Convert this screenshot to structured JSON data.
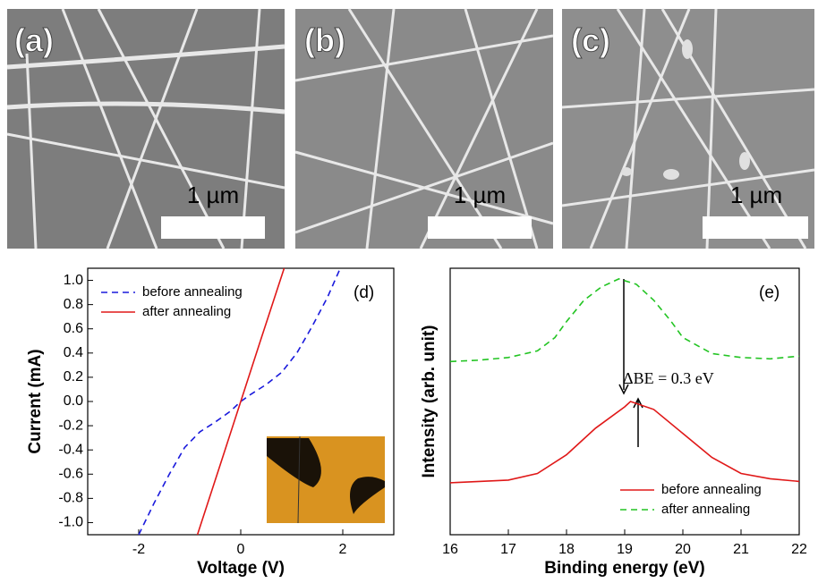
{
  "images": [
    {
      "label": "(a)",
      "scale": "1 µm"
    },
    {
      "label": "(b)",
      "scale": "1 µm"
    },
    {
      "label": "(c)",
      "scale": "1 µm"
    }
  ],
  "chart_data": [
    {
      "type": "line",
      "panel_label": "(d)",
      "xlabel": "Voltage (V)",
      "ylabel": "Current (mA)",
      "xlim": [
        -3,
        3
      ],
      "xticks": [
        -2,
        0,
        2
      ],
      "ylim": [
        -1.1,
        1.1
      ],
      "yticks": [
        {
          "value": -1.0,
          "label": "-1.0"
        },
        -0.8,
        -0.6,
        -0.4,
        -0.2,
        {
          "value": 0,
          "label": "0.0"
        },
        0.2,
        0.4,
        0.6,
        0.8,
        {
          "value": 1.0,
          "label": "1.0"
        }
      ],
      "legend": "upper left",
      "series": [
        {
          "name": "before annealing",
          "color": "#1a1adc",
          "dash": true,
          "x": [
            -2,
            -1.7,
            -1.4,
            -1.1,
            -0.8,
            -0.5,
            -0.2,
            0,
            0.2,
            0.5,
            0.8,
            1.1,
            1.4,
            1.7,
            1.95
          ],
          "values": [
            -1.1,
            -0.84,
            -0.6,
            -0.38,
            -0.25,
            -0.17,
            -0.08,
            0,
            0.06,
            0.14,
            0.24,
            0.4,
            0.62,
            0.86,
            1.1
          ]
        },
        {
          "name": "after annealing",
          "color": "#e01818",
          "dash": false,
          "x": [
            -0.85,
            -0.4,
            0,
            0.4,
            0.85
          ],
          "values": [
            -1.1,
            -0.52,
            0,
            0.52,
            1.1
          ]
        }
      ]
    },
    {
      "type": "line",
      "panel_label": "(e)",
      "xlabel": "Binding energy (eV)",
      "ylabel": "Intensity (arb. unit)",
      "annotation": "ΔBE = 0.3 eV",
      "xlim": [
        16,
        22
      ],
      "xticks": [
        16,
        17,
        18,
        19,
        20,
        21,
        22
      ],
      "ylim": [
        0,
        1
      ],
      "legend": "lower right",
      "series": [
        {
          "name": "before annealing",
          "color": "#e01818",
          "dash": false,
          "x": [
            16,
            16.5,
            17,
            17.5,
            18,
            18.5,
            19,
            19.1,
            19.5,
            20,
            20.5,
            21,
            21.5,
            22
          ],
          "values": [
            0.195,
            0.2,
            0.205,
            0.23,
            0.3,
            0.4,
            0.48,
            0.5,
            0.47,
            0.38,
            0.29,
            0.23,
            0.21,
            0.2
          ]
        },
        {
          "name": "after annealing",
          "color": "#22c422",
          "dash": true,
          "x": [
            16,
            16.5,
            17,
            17.5,
            17.8,
            18,
            18.3,
            18.6,
            18.9,
            19.2,
            19.5,
            19.8,
            20,
            20.5,
            21,
            21.5,
            22
          ],
          "values": [
            0.65,
            0.655,
            0.665,
            0.69,
            0.74,
            0.8,
            0.88,
            0.93,
            0.96,
            0.94,
            0.88,
            0.8,
            0.74,
            0.68,
            0.665,
            0.66,
            0.67
          ]
        }
      ]
    }
  ]
}
